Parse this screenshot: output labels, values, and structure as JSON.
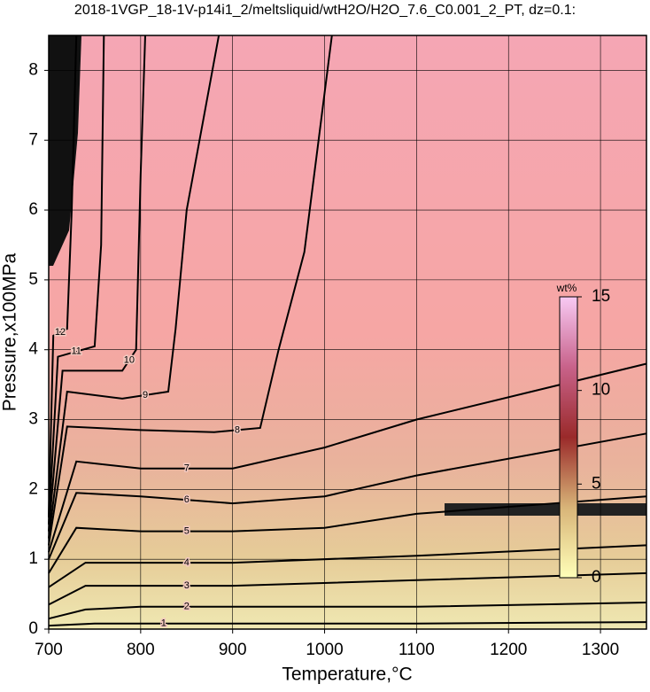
{
  "chart_data": {
    "type": "contour",
    "title": "2018-1VGP_18-1V-p14i1_2/meltsliquid/wtH2O/H2O_7.6_C0.001_2_PT, dz=0.1:",
    "xlabel": "Temperature,°C",
    "ylabel": "Pressure,x100MPa",
    "xlim": [
      700,
      1350
    ],
    "ylim": [
      0,
      8.5
    ],
    "xticks": [
      700,
      800,
      900,
      1000,
      1100,
      1200,
      1300
    ],
    "yticks": [
      0,
      1,
      2,
      3,
      4,
      5,
      6,
      7,
      8
    ],
    "grid": true,
    "line_color": "#000000",
    "contours": [
      {
        "level": 1,
        "x": [
          700,
          750,
          900,
          1100,
          1350
        ],
        "y": [
          0.05,
          0.08,
          0.08,
          0.08,
          0.1
        ]
      },
      {
        "level": 2,
        "x": [
          700,
          740,
          800,
          900,
          1100,
          1350
        ],
        "y": [
          0.15,
          0.28,
          0.32,
          0.32,
          0.32,
          0.38
        ]
      },
      {
        "level": 3,
        "x": [
          700,
          740,
          800,
          900,
          1100,
          1350
        ],
        "y": [
          0.35,
          0.62,
          0.62,
          0.62,
          0.7,
          0.8
        ]
      },
      {
        "level": 4,
        "x": [
          700,
          740,
          800,
          900,
          1100,
          1350
        ],
        "y": [
          0.6,
          0.95,
          0.95,
          0.95,
          1.05,
          1.2
        ]
      },
      {
        "level": 5,
        "x": [
          700,
          730,
          800,
          900,
          1000,
          1100,
          1350
        ],
        "y": [
          0.8,
          1.45,
          1.4,
          1.4,
          1.45,
          1.65,
          1.9
        ]
      },
      {
        "level": 6,
        "x": [
          700,
          730,
          800,
          900,
          1000,
          1100,
          1350
        ],
        "y": [
          1.0,
          1.95,
          1.9,
          1.8,
          1.9,
          2.2,
          2.8
        ]
      },
      {
        "level": 7,
        "x": [
          700,
          730,
          800,
          900,
          1000,
          1100,
          1350
        ],
        "y": [
          1.1,
          2.4,
          2.3,
          2.3,
          2.6,
          3.0,
          3.8
        ]
      },
      {
        "level": 8,
        "x": [
          700,
          720,
          800,
          880,
          930,
          950,
          978,
          1008
        ],
        "y": [
          1.2,
          2.9,
          2.85,
          2.82,
          2.88,
          4.0,
          5.4,
          8.5
        ]
      },
      {
        "level": 9,
        "x": [
          700,
          720,
          780,
          830,
          838,
          850,
          885
        ],
        "y": [
          1.3,
          3.4,
          3.3,
          3.4,
          4.3,
          6.0,
          8.5
        ]
      },
      {
        "level": 10,
        "x": [
          700,
          715,
          780,
          795,
          800,
          805
        ],
        "y": [
          1.4,
          3.7,
          3.7,
          4.0,
          6.5,
          8.5
        ]
      },
      {
        "level": 11,
        "x": [
          700,
          710,
          750,
          757,
          760
        ],
        "y": [
          1.5,
          3.9,
          4.05,
          5.5,
          8.5
        ]
      },
      {
        "level": 12,
        "x": [
          700,
          705,
          720,
          725,
          730
        ],
        "y": [
          1.6,
          4.2,
          4.3,
          6.0,
          8.5
        ]
      }
    ],
    "colorbar": {
      "label": "wt%",
      "clim": [
        0,
        15
      ],
      "ticks": [
        0,
        5,
        10,
        15
      ],
      "colors": [
        "#ffffb8",
        "#d8b478",
        "#9a2a2a",
        "#c8628a",
        "#f8caf4"
      ]
    }
  }
}
